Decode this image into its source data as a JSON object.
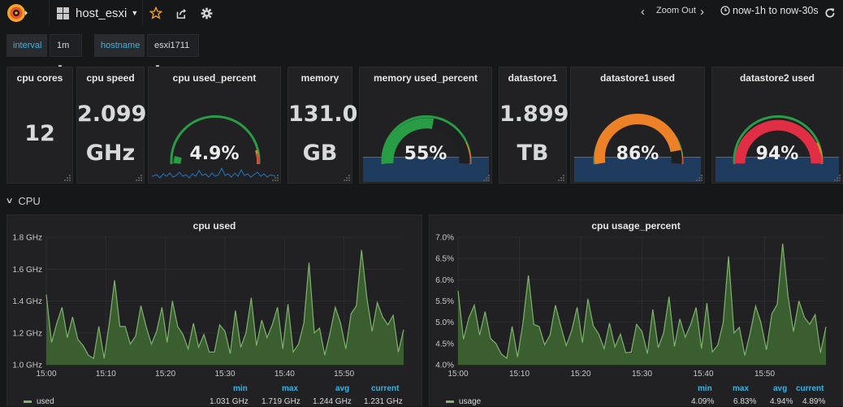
{
  "nav": {
    "dashboard_title": "host_esxi",
    "zoom_out_label": "Zoom Out",
    "time_range": "now-1h to now-30s"
  },
  "variables": [
    {
      "label": "interval",
      "value": "1m"
    },
    {
      "label": "hostname",
      "value": "esxi1711"
    }
  ],
  "stats": {
    "cpu_cores": {
      "title": "cpu cores",
      "value": "12"
    },
    "cpu_speed": {
      "title": "cpu speed",
      "value": "2.099",
      "unit": "GHz"
    },
    "cpu_used_percent": {
      "title": "cpu used_percent",
      "value": "4.9%",
      "gauge_fraction": 0.049
    },
    "memory": {
      "title": "memory",
      "value": "131.0",
      "unit": "GB"
    },
    "memory_used_percent": {
      "title": "memory used_percent",
      "value": "55%",
      "gauge_fraction": 0.55
    },
    "datastore1": {
      "title": "datastore1",
      "value": "1.899",
      "unit": "TB"
    },
    "datastore1_used": {
      "title": "datastore1 used",
      "value": "86%",
      "gauge_fraction": 0.86
    },
    "datastore2_used": {
      "title": "datastore2 used",
      "value": "94%",
      "gauge_fraction": 0.94
    }
  },
  "colors": {
    "green": "#299c46",
    "orange": "#ed8128",
    "red": "#d44a3a",
    "line": "#7eb26d",
    "fill": "#3f6833",
    "link": "#33b5e5"
  },
  "row": {
    "title": "CPU"
  },
  "chart_data": [
    {
      "type": "area",
      "title": "cpu used",
      "ylim": [
        1.0,
        1.8
      ],
      "yticks": [
        "1.0 GHz",
        "1.2 GHz",
        "1.4 GHz",
        "1.6 GHz",
        "1.8 GHz"
      ],
      "xticks": [
        "15:00",
        "15:10",
        "15:20",
        "15:30",
        "15:40",
        "15:50"
      ],
      "series": [
        {
          "name": "used",
          "values": [
            1.44,
            1.14,
            1.26,
            1.36,
            1.17,
            1.3,
            1.16,
            1.12,
            1.06,
            1.04,
            1.24,
            1.04,
            1.26,
            1.53,
            1.24,
            1.24,
            1.13,
            1.18,
            1.37,
            1.24,
            1.13,
            1.21,
            1.36,
            1.14,
            1.4,
            1.24,
            1.19,
            1.1,
            1.26,
            1.11,
            1.19,
            1.08,
            1.08,
            1.25,
            1.21,
            1.07,
            1.34,
            1.11,
            1.2,
            1.42,
            1.12,
            1.28,
            1.17,
            1.25,
            1.36,
            1.1,
            1.38,
            1.08,
            1.13,
            1.26,
            1.64,
            1.2,
            1.23,
            1.06,
            1.2,
            1.36,
            1.26,
            1.1,
            1.32,
            1.37,
            1.72,
            1.42,
            1.21,
            1.39,
            1.3,
            1.25,
            1.31,
            1.08,
            1.22
          ]
        }
      ],
      "legend": {
        "headers": [
          "min",
          "max",
          "avg",
          "current"
        ],
        "name": "used",
        "min": "1.031 GHz",
        "max": "1.719 GHz",
        "avg": "1.244 GHz",
        "current": "1.231 GHz"
      }
    },
    {
      "type": "area",
      "title": "cpu usage_percent",
      "ylim": [
        4.0,
        7.0
      ],
      "yticks": [
        "4.0%",
        "4.5%",
        "5.0%",
        "5.5%",
        "6.0%",
        "6.5%",
        "7.0%"
      ],
      "xticks": [
        "15:00",
        "15:10",
        "15:20",
        "15:30",
        "15:40",
        "15:50"
      ],
      "series": [
        {
          "name": "usage",
          "values": [
            5.74,
            4.6,
            5.1,
            5.4,
            4.7,
            5.25,
            4.62,
            4.5,
            4.25,
            4.15,
            4.9,
            4.18,
            4.98,
            6.1,
            4.95,
            4.9,
            4.47,
            4.7,
            5.4,
            4.9,
            4.45,
            4.8,
            5.35,
            4.52,
            5.55,
            4.92,
            4.72,
            4.38,
            4.98,
            4.42,
            4.72,
            4.28,
            4.3,
            4.95,
            4.78,
            4.26,
            5.3,
            4.4,
            4.75,
            5.6,
            4.43,
            5.08,
            4.65,
            4.95,
            5.35,
            4.38,
            5.45,
            4.3,
            4.46,
            4.98,
            6.55,
            4.75,
            4.88,
            4.22,
            4.75,
            5.38,
            4.98,
            4.35,
            5.2,
            5.42,
            6.85,
            5.6,
            4.78,
            5.5,
            5.12,
            4.95,
            5.18,
            4.28,
            4.89
          ]
        }
      ],
      "legend": {
        "headers": [
          "min",
          "max",
          "avg",
          "current"
        ],
        "name": "usage",
        "min": "4.09%",
        "max": "6.83%",
        "avg": "4.94%",
        "current": "4.89%"
      }
    }
  ]
}
